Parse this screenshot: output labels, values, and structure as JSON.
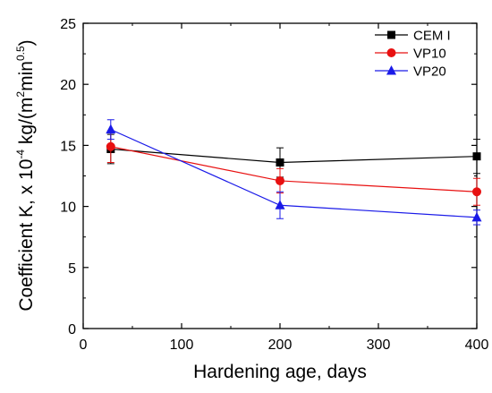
{
  "chart_data": {
    "type": "line",
    "xlabel": "Hardening age, days",
    "ylabel": {
      "prefix": "Coefficient K, x 10",
      "exp1": "-4",
      "mid": " kg/(m",
      "exp2": "2",
      "mid2": "min",
      "exp3": "0.5",
      "suffix": ")"
    },
    "xlim": [
      0,
      400
    ],
    "ylim": [
      0,
      25
    ],
    "xticks": [
      0,
      100,
      200,
      300,
      400
    ],
    "yticks": [
      0,
      5,
      10,
      15,
      20,
      25
    ],
    "grid": false,
    "legend_position": "top-right",
    "series": [
      {
        "name": "CEM I",
        "color": "#000000",
        "marker": "square",
        "x": [
          28,
          200,
          400
        ],
        "y": [
          14.7,
          13.6,
          14.1
        ],
        "err": [
          1.2,
          1.2,
          1.4
        ]
      },
      {
        "name": "VP10",
        "color": "#e81010",
        "marker": "circle",
        "x": [
          28,
          200,
          400
        ],
        "y": [
          14.9,
          12.1,
          11.2
        ],
        "err": [
          1.3,
          1.0,
          1.1
        ]
      },
      {
        "name": "VP20",
        "color": "#1a1ae8",
        "marker": "triangle",
        "x": [
          28,
          200,
          400
        ],
        "y": [
          16.3,
          10.1,
          9.1
        ],
        "err": [
          0.8,
          1.1,
          0.6
        ]
      }
    ]
  }
}
